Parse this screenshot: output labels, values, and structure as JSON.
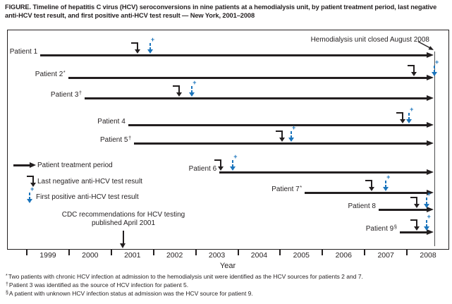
{
  "title": "FIGURE. Timeline of hepatitis C virus (HCV) seroconversions in nine patients at a hemodialysis unit, by patient treatment period, last negative anti-HCV test result, and first positive anti-HCV test result — New York, 2001–2008",
  "chart_data": {
    "type": "timeline",
    "xlabel": "Year",
    "x_ticks": [
      1999,
      2000,
      2001,
      2002,
      2003,
      2004,
      2005,
      2006,
      2007,
      2008
    ],
    "x_range": [
      1998.5,
      2009.0
    ],
    "legend": {
      "treatment_period": "Patient treatment period",
      "last_negative": "Last negative anti-HCV test result",
      "first_positive": "First positive anti-HCV test result"
    },
    "annotations": {
      "unit_closed": {
        "label": "Hemodialysis unit closed August 2008",
        "year": 2008.65
      },
      "cdc": {
        "line1": "CDC recommendations for HCV testing",
        "line2": "published April 2001",
        "year": 2001.3
      }
    },
    "patients": [
      {
        "label": "Patient 1",
        "footnote_symbol": "",
        "treatment_start": 1999.32,
        "treatment_end": 2008.65,
        "last_negative": 2001.64,
        "first_positive": 2001.92
      },
      {
        "label": "Patient 2",
        "footnote_symbol": "*",
        "treatment_start": 1999.98,
        "treatment_end": 2008.65,
        "last_negative": 2008.18,
        "first_positive": 2008.65
      },
      {
        "label": "Patient 3",
        "footnote_symbol": "†",
        "treatment_start": 2000.37,
        "treatment_end": 2008.65,
        "last_negative": 2002.62,
        "first_positive": 2002.91
      },
      {
        "label": "Patient 4",
        "footnote_symbol": "",
        "treatment_start": 2001.4,
        "treatment_end": 2008.65,
        "last_negative": 2007.92,
        "first_positive": 2008.05
      },
      {
        "label": "Patient 5",
        "footnote_symbol": "†",
        "treatment_start": 2001.54,
        "treatment_end": 2008.65,
        "last_negative": 2005.06,
        "first_positive": 2005.26
      },
      {
        "label": "Patient 6",
        "footnote_symbol": "",
        "treatment_start": 2003.56,
        "treatment_end": 2008.65,
        "last_negative": 2003.6,
        "first_positive": 2003.88
      },
      {
        "label": "Patient 7",
        "footnote_symbol": "*",
        "treatment_start": 2005.58,
        "treatment_end": 2008.65,
        "last_negative": 2007.18,
        "first_positive": 2007.5
      },
      {
        "label": "Patient 8",
        "footnote_symbol": "",
        "treatment_start": 2007.33,
        "treatment_end": 2008.65,
        "last_negative": 2008.25,
        "first_positive": 2008.46
      },
      {
        "label": "Patient 9",
        "footnote_symbol": "§",
        "treatment_start": 2007.83,
        "treatment_end": 2008.65,
        "last_negative": 2008.25,
        "first_positive": 2008.46
      }
    ]
  },
  "footnotes": [
    {
      "symbol": "*",
      "text": "Two patients with chronic HCV infection at admission to the hemodialysis unit were identified as the HCV sources for patients 2 and 7."
    },
    {
      "symbol": "†",
      "text": "Patient 3 was identified as the source of HCV infection for patient 5."
    },
    {
      "symbol": "§",
      "text": "A patient with unknown HCV infection status at admission was the HCV source for patient 9."
    }
  ],
  "colors": {
    "ink": "#231f20",
    "positive_blue": "#1c75bc"
  }
}
